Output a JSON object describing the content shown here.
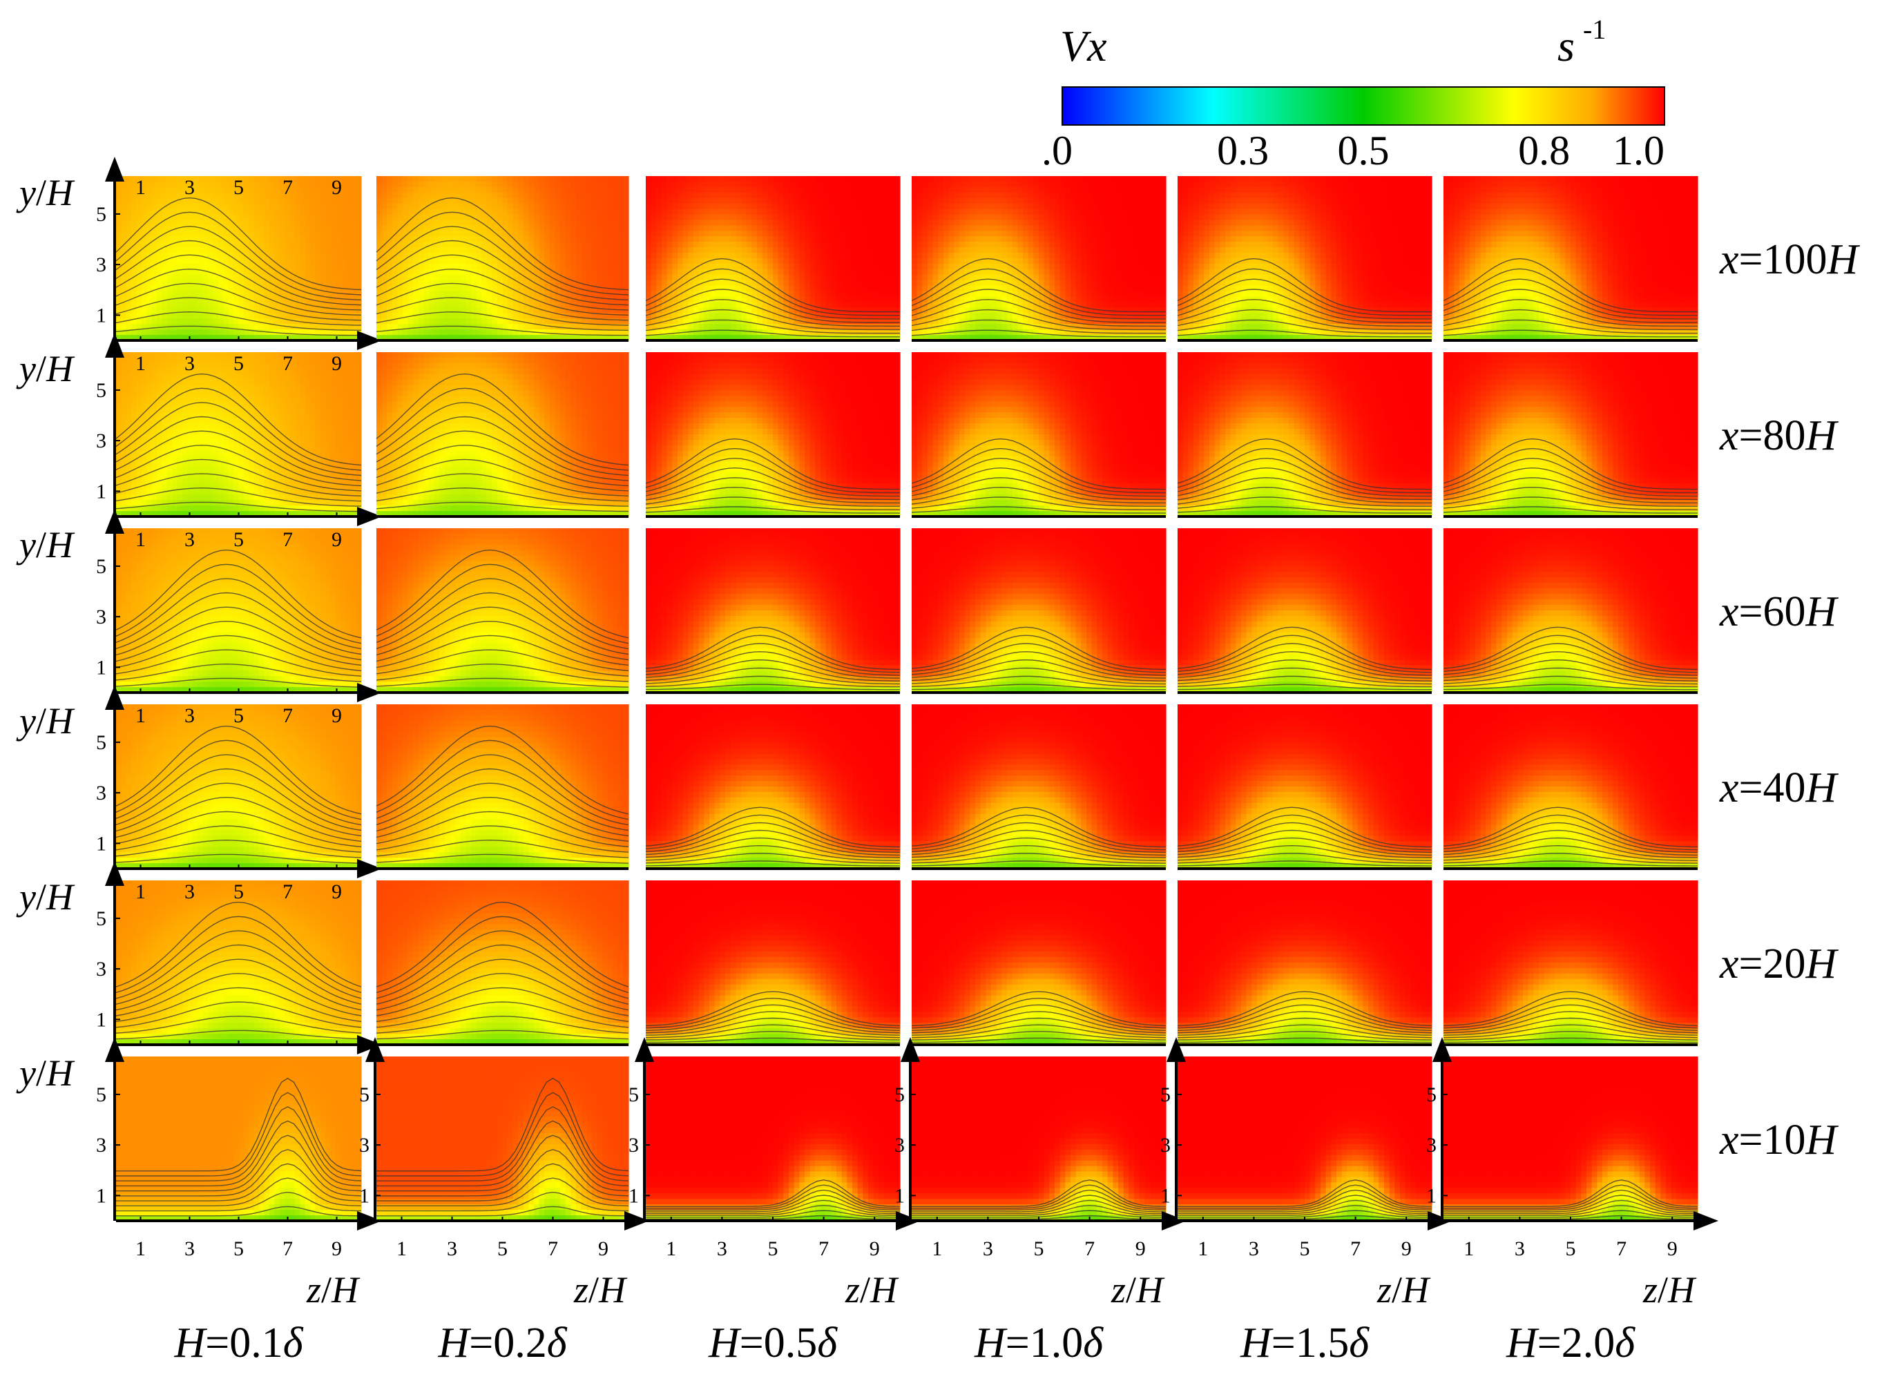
{
  "chart_data": {
    "type": "heatmap",
    "title": "",
    "colorbar": {
      "variable": "Vx",
      "unit": "s",
      "unit_exponent": "-1",
      "ticks": [
        ".0",
        "0.3",
        "0.5",
        "0.8",
        "1.0"
      ],
      "tick_values": [
        0.0,
        0.3,
        0.5,
        0.8,
        1.0
      ],
      "range": [
        0.0,
        1.0
      ],
      "stops": [
        {
          "v": 0.0,
          "color": "#0000ff"
        },
        {
          "v": 0.25,
          "color": "#00ffff"
        },
        {
          "v": 0.5,
          "color": "#00cc00"
        },
        {
          "v": 0.75,
          "color": "#ffff00"
        },
        {
          "v": 0.88,
          "color": "#ffaa00"
        },
        {
          "v": 1.0,
          "color": "#ff0000"
        }
      ]
    },
    "x_axis": {
      "label_var": "z",
      "label_unit": "H",
      "ticks": [
        "1",
        "3",
        "5",
        "7",
        "9"
      ],
      "range": [
        0,
        10
      ]
    },
    "y_axis": {
      "label_var": "y",
      "label_unit": "H",
      "ticks": [
        "1",
        "3",
        "5"
      ],
      "range": [
        0,
        6.5
      ]
    },
    "columns": [
      "H=0.1δ",
      "H=0.2δ",
      "H=0.5δ",
      "H=1.0δ",
      "H=1.5δ",
      "H=2.0δ"
    ],
    "columns_parts": [
      {
        "var": "H",
        "num": "=0.1",
        "sym": "δ"
      },
      {
        "var": "H",
        "num": "=0.2",
        "sym": "δ"
      },
      {
        "var": "H",
        "num": "=0.5",
        "sym": "δ"
      },
      {
        "var": "H",
        "num": "=1.0",
        "sym": "δ"
      },
      {
        "var": "H",
        "num": "=1.5",
        "sym": "δ"
      },
      {
        "var": "H",
        "num": "=2.0",
        "sym": "δ"
      }
    ],
    "rows": [
      "x=100H",
      "x=80H",
      "x=60H",
      "x=40H",
      "x=20H",
      "x=10H"
    ],
    "rows_parts": [
      {
        "var": "x",
        "num": "=100",
        "unit": "H"
      },
      {
        "var": "x",
        "num": "=80",
        "unit": "H"
      },
      {
        "var": "x",
        "num": "=60",
        "unit": "H"
      },
      {
        "var": "x",
        "num": "=40",
        "unit": "H"
      },
      {
        "var": "x",
        "num": "=20",
        "unit": "H"
      },
      {
        "var": "x",
        "num": "=10",
        "unit": "H"
      }
    ],
    "field_estimates": {
      "background_Vx_by_column": [
        0.9,
        0.95,
        1.0,
        1.0,
        1.0,
        1.0
      ],
      "plume_core_Vx": 0.7,
      "near_wall_Vx": 0.55,
      "plume_center_z_by_row": [
        3,
        3.5,
        4.5,
        4.5,
        5,
        7
      ],
      "plume_height_y_by_column": [
        5.5,
        5.5,
        4,
        4,
        4,
        4
      ],
      "plume_height_scale_by_row": [
        1.0,
        0.95,
        0.8,
        0.75,
        0.65,
        0.5
      ]
    }
  }
}
